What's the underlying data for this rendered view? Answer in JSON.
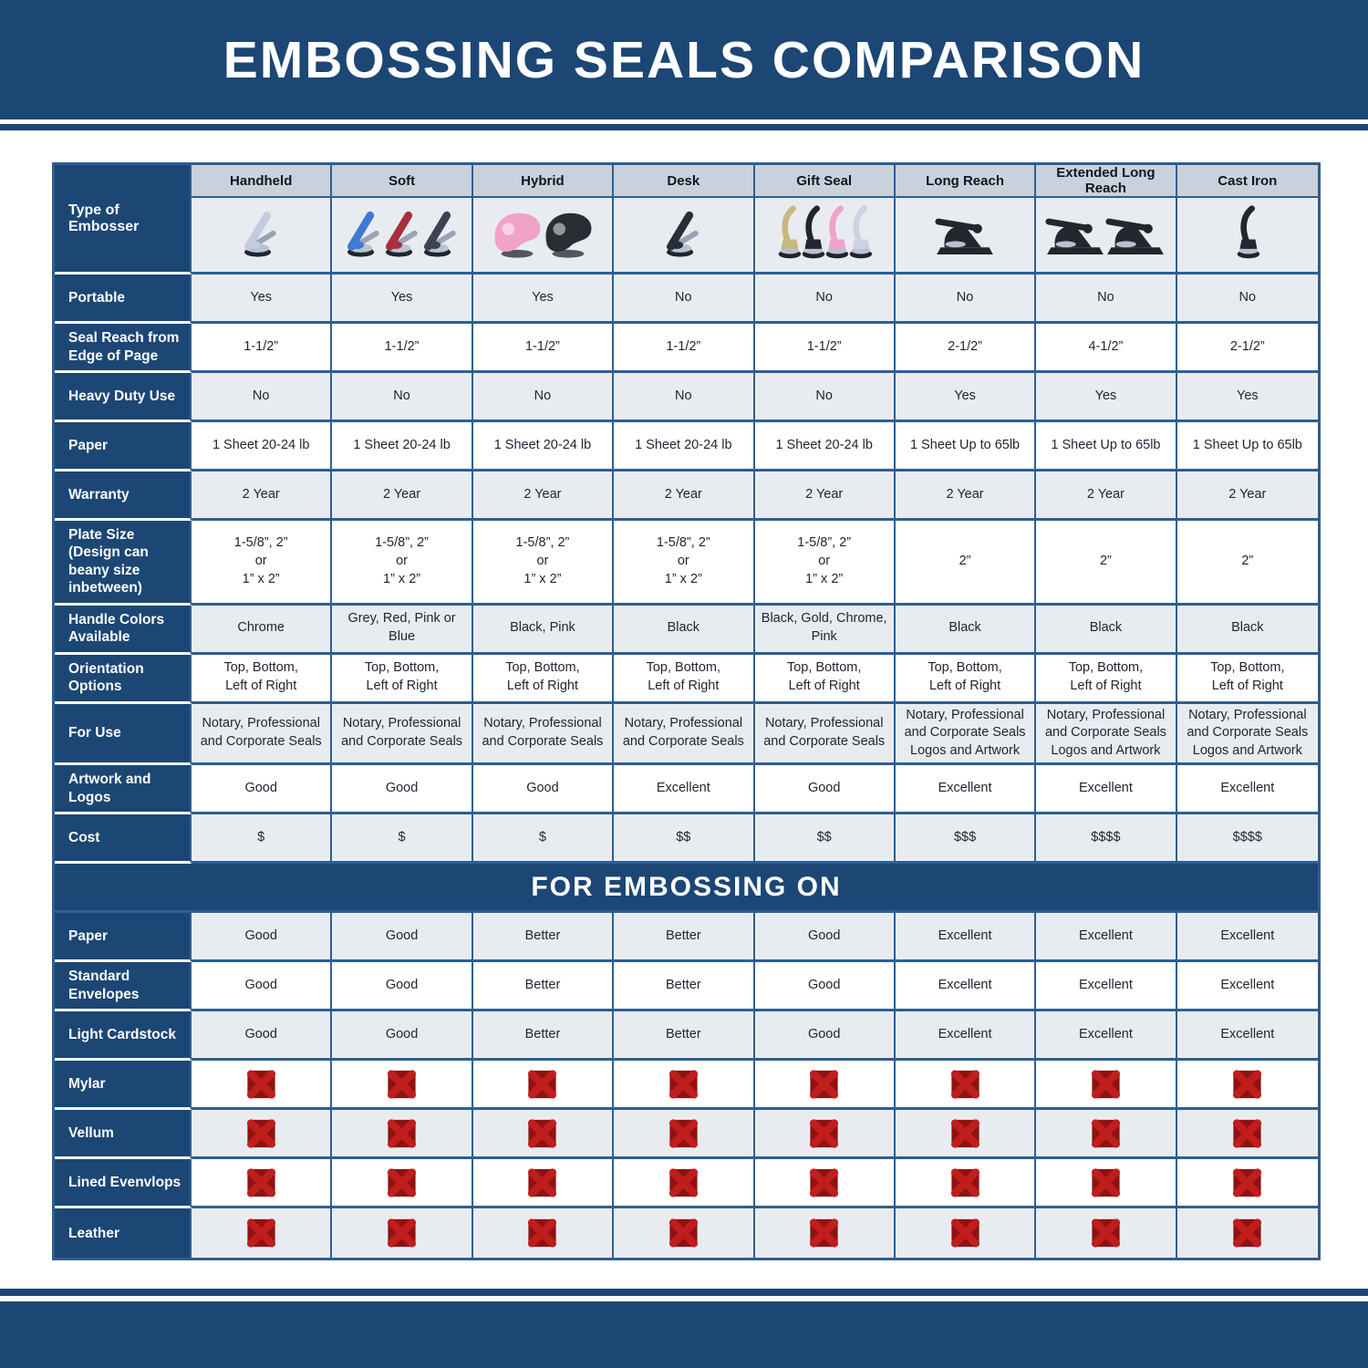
{
  "page": {
    "title": "EMBOSSING SEALS COMPARISON"
  },
  "colors": {
    "navy": "#1c4674",
    "grid": "#2d5f92",
    "header_bg": "#c9d2dc",
    "row_grey": "#e8ecf1",
    "row_white": "#ffffff",
    "cell_text": "#1d2531",
    "x_red": "#c01d1d",
    "x_dark_red": "#8f1212"
  },
  "chart_data": {
    "type": "table",
    "title": "EMBOSSING SEALS COMPARISON",
    "corner_label": "Type of Embosser",
    "columns": [
      "Handheld",
      "Soft",
      "Hybrid",
      "Desk",
      "Gift Seal",
      "Long Reach",
      "Extended Long Reach",
      "Cast Iron"
    ],
    "embossers": [
      {
        "name": "handheld-embosser-image",
        "presses": [
          {
            "shape": "hand",
            "color": "#c3cbde"
          }
        ]
      },
      {
        "name": "soft-embosser-image",
        "presses": [
          {
            "shape": "hand",
            "color": "#3f7ad2"
          },
          {
            "shape": "hand",
            "color": "#a8303c"
          },
          {
            "shape": "hand",
            "color": "#3c4250"
          }
        ]
      },
      {
        "name": "hybrid-embosser-image",
        "presses": [
          {
            "shape": "blob",
            "color": "#f0a2c8"
          },
          {
            "shape": "blob",
            "color": "#2a2d34"
          }
        ]
      },
      {
        "name": "desk-embosser-image",
        "presses": [
          {
            "shape": "hand",
            "color": "#2a2d34"
          }
        ]
      },
      {
        "name": "gift-seal-embosser-image",
        "presses": [
          {
            "shape": "slim",
            "color": "#c9b87e"
          },
          {
            "shape": "slim",
            "color": "#23262d"
          },
          {
            "shape": "slim",
            "color": "#f0a2c8"
          },
          {
            "shape": "slim",
            "color": "#ccd4e2"
          }
        ]
      },
      {
        "name": "long-reach-embosser-image",
        "presses": [
          {
            "shape": "desk",
            "color": "#23262d"
          }
        ]
      },
      {
        "name": "extended-long-reach-embosser-image",
        "presses": [
          {
            "shape": "desk",
            "color": "#23262d"
          },
          {
            "shape": "desk",
            "color": "#23262d"
          }
        ]
      },
      {
        "name": "cast-iron-embosser-image",
        "presses": [
          {
            "shape": "slim",
            "color": "#23262d"
          }
        ]
      }
    ],
    "sections": [
      {
        "title": "",
        "rows": [
          {
            "label": "Portable",
            "values": [
              "Yes",
              "Yes",
              "Yes",
              "No",
              "No",
              "No",
              "No",
              "No"
            ]
          },
          {
            "label": "Seal Reach from Edge of Page",
            "values": [
              "1-1/2”",
              "1-1/2”",
              "1-1/2”",
              "1-1/2”",
              "1-1/2”",
              "2-1/2”",
              "4-1/2”",
              "2-1/2”"
            ]
          },
          {
            "label": "Heavy Duty Use",
            "values": [
              "No",
              "No",
              "No",
              "No",
              "No",
              "Yes",
              "Yes",
              "Yes"
            ]
          },
          {
            "label": "Paper",
            "values": [
              "1 Sheet 20-24 lb",
              "1 Sheet 20-24 lb",
              "1 Sheet 20-24 lb",
              "1 Sheet 20-24 lb",
              "1 Sheet 20-24 lb",
              "1 Sheet Up to 65lb",
              "1 Sheet Up to 65lb",
              "1 Sheet Up to 65lb"
            ]
          },
          {
            "label": "Warranty",
            "values": [
              "2 Year",
              "2 Year",
              "2 Year",
              "2 Year",
              "2 Year",
              "2 Year",
              "2 Year",
              "2 Year"
            ]
          },
          {
            "label": "Plate Size (Design can beany size inbetween)",
            "tall": true,
            "values": [
              "1-5/8”, 2”\nor\n1” x 2”",
              "1-5/8”, 2”\nor\n1” x 2”",
              "1-5/8”, 2”\nor\n1” x 2”",
              "1-5/8”, 2”\nor\n1” x 2”",
              "1-5/8”, 2”\nor\n1” x 2”",
              "2”",
              "2”",
              "2”"
            ]
          },
          {
            "label": "Handle Colors Available",
            "values": [
              "Chrome",
              "Grey, Red, Pink or Blue",
              "Black, Pink",
              "Black",
              "Black, Gold, Chrome, Pink",
              "Black",
              "Black",
              "Black"
            ]
          },
          {
            "label": "Orientation Options",
            "values": [
              "Top, Bottom,\nLeft of Right",
              "Top, Bottom,\nLeft of Right",
              "Top, Bottom,\nLeft of Right",
              "Top, Bottom,\nLeft of Right",
              "Top, Bottom,\nLeft of Right",
              "Top, Bottom,\nLeft of Right",
              "Top, Bottom,\nLeft of Right",
              "Top, Bottom,\nLeft of Right"
            ]
          },
          {
            "label": "For Use",
            "tall": true,
            "values": [
              "Notary, Professional\nand Corporate Seals",
              "Notary, Professional\nand Corporate Seals",
              "Notary, Professional\nand Corporate Seals",
              "Notary, Professional\nand Corporate Seals",
              "Notary, Professional\nand Corporate Seals",
              "Notary, Professional\nand Corporate Seals\nLogos and Artwork",
              "Notary, Professional\nand Corporate Seals\nLogos and Artwork",
              "Notary, Professional\nand Corporate Seals\nLogos and Artwork"
            ]
          },
          {
            "label": "Artwork and Logos",
            "values": [
              "Good",
              "Good",
              "Good",
              "Excellent",
              "Good",
              "Excellent",
              "Excellent",
              "Excellent"
            ]
          },
          {
            "label": "Cost",
            "values": [
              "$",
              "$",
              "$",
              "$$",
              "$$",
              "$$$",
              "$$$$",
              "$$$$"
            ]
          }
        ]
      },
      {
        "title": "FOR EMBOSSING ON",
        "rows": [
          {
            "label": "Paper",
            "values": [
              "Good",
              "Good",
              "Better",
              "Better",
              "Good",
              "Excellent",
              "Excellent",
              "Excellent"
            ]
          },
          {
            "label": "Standard Envelopes",
            "values": [
              "Good",
              "Good",
              "Better",
              "Better",
              "Good",
              "Excellent",
              "Excellent",
              "Excellent"
            ]
          },
          {
            "label": "Light Cardstock",
            "values": [
              "Good",
              "Good",
              "Better",
              "Better",
              "Good",
              "Excellent",
              "Excellent",
              "Excellent"
            ]
          },
          {
            "label": "Mylar",
            "all_x": true
          },
          {
            "label": "Vellum",
            "all_x": true
          },
          {
            "label": "Lined Evenvlops",
            "all_x": true
          },
          {
            "label": "Leather",
            "all_x": true
          }
        ]
      }
    ],
    "x_icon_meaning": "not suitable"
  }
}
